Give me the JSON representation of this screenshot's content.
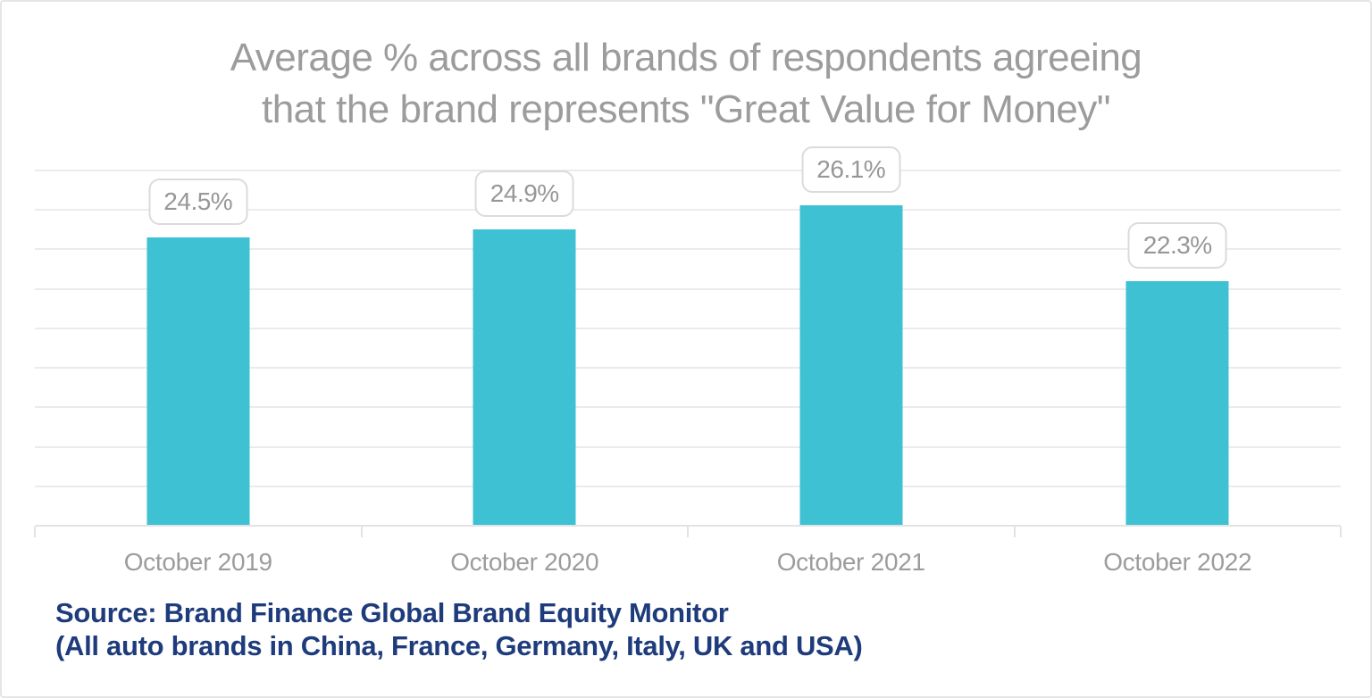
{
  "chart_data": {
    "type": "bar",
    "title": "Average % across all brands of respondents agreeing\nthat the brand represents \"Great Value for Money\"",
    "categories": [
      "October 2019",
      "October 2020",
      "October 2021",
      "October 2022"
    ],
    "values": [
      24.5,
      24.9,
      26.1,
      22.3
    ],
    "value_labels": [
      "24.5%",
      "24.9%",
      "26.1%",
      "22.3%"
    ],
    "ylabel": "",
    "xlabel": "",
    "ylim": [
      10,
      28
    ],
    "grid_step": 2,
    "grid": true,
    "legend": "none",
    "source_line1": "Source: Brand Finance Global Brand Equity Monitor",
    "source_line2": "(All auto brands in China, France, Germany, Italy, UK and USA)",
    "colors": {
      "bar": "#3ec1d3",
      "title": "#9c9c9c",
      "axis_label": "#9c9c9c",
      "value_text": "#979797",
      "value_border": "#dbdbdb",
      "gridline": "#ebebeb",
      "axis": "#e3e3e3",
      "tick": "#e3e3e3",
      "source": "#1e3b7b",
      "card_border": "#e5e5e5"
    }
  }
}
